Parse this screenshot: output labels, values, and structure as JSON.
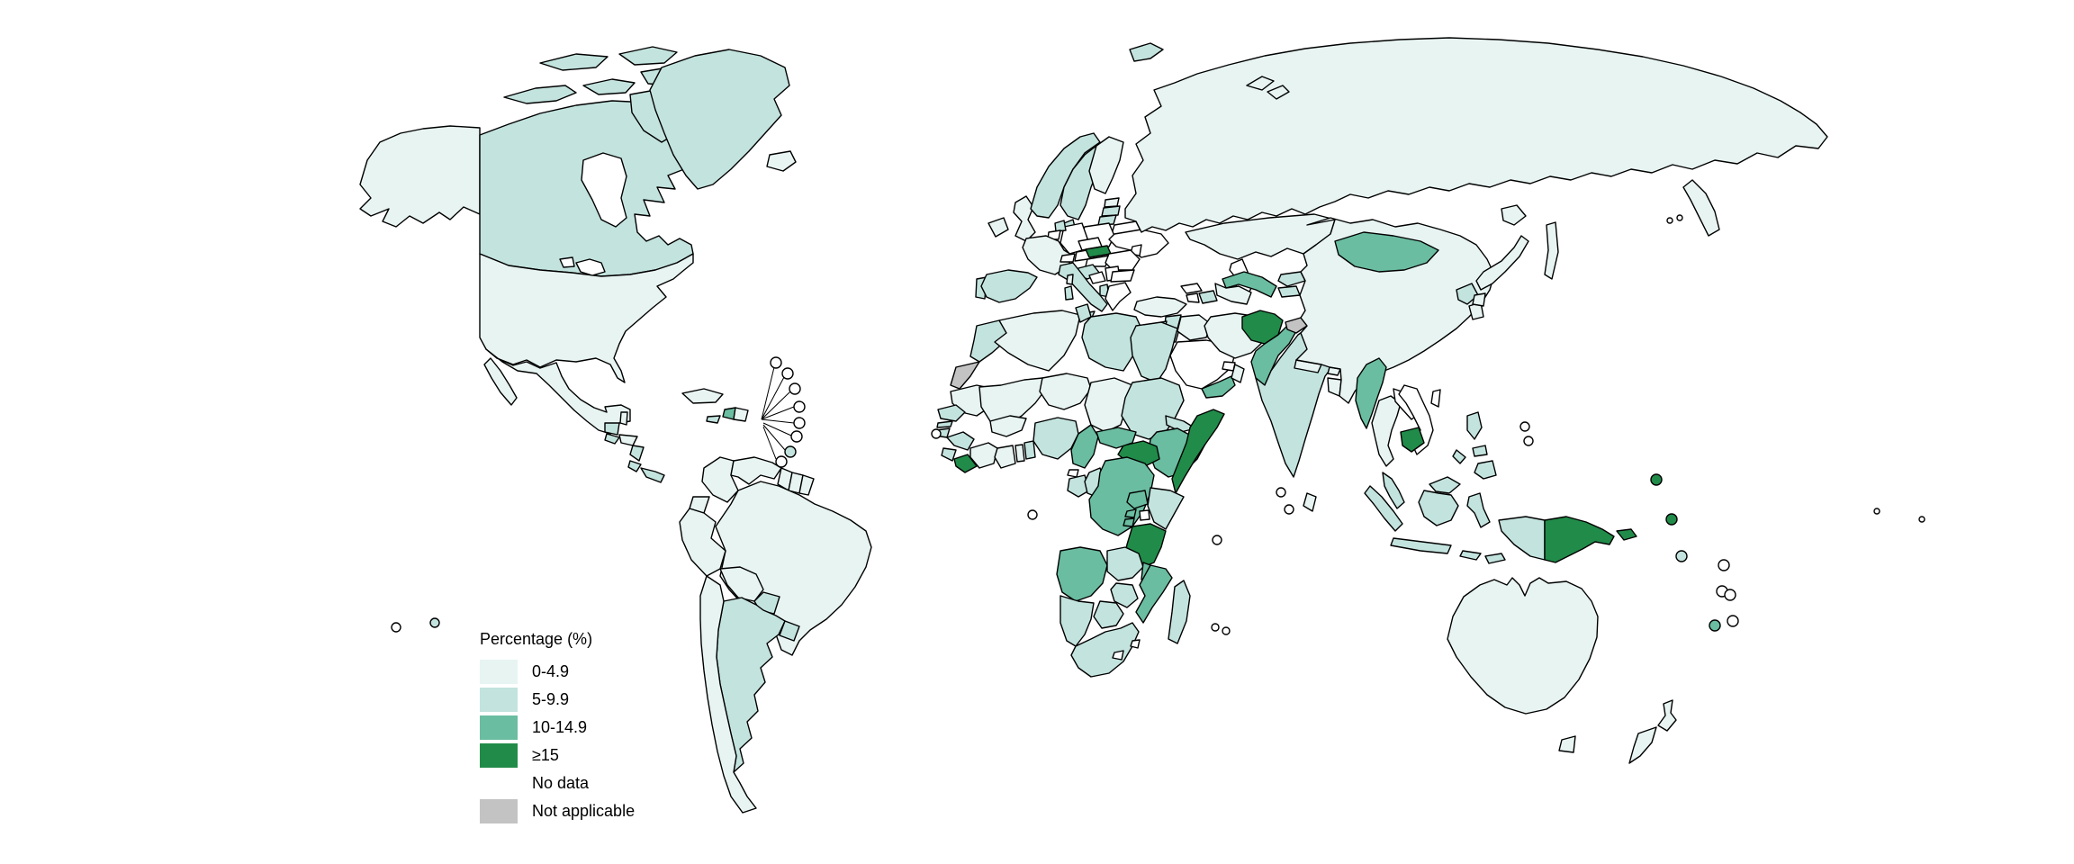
{
  "legend": {
    "title": "Percentage (%)",
    "items": [
      {
        "key": "0-4.9",
        "label": "0-4.9",
        "color": "#e7f4f2"
      },
      {
        "key": "5-9.9",
        "label": "5-9.9",
        "color": "#c3e3de"
      },
      {
        "key": "10-14.9",
        "label": "10-14.9",
        "color": "#6abda0"
      },
      {
        "key": ">=15",
        "label": "≥15",
        "color": "#218b49"
      },
      {
        "key": "no-data",
        "label": "No data",
        "color": "#ffffff"
      },
      {
        "key": "not-applicable",
        "label": "Not applicable",
        "color": "#c3c3c3"
      }
    ]
  },
  "map": {
    "type": "choropleth-world-map",
    "border_color": "#000000",
    "background_color": "#ffffff",
    "countries": [
      {
        "id": "united-states",
        "name": "United States of America",
        "category": "0-4.9"
      },
      {
        "id": "canada",
        "name": "Canada",
        "category": "5-9.9"
      },
      {
        "id": "greenland",
        "name": "Greenland",
        "category": "5-9.9"
      },
      {
        "id": "iceland",
        "name": "Iceland",
        "category": "0-4.9"
      },
      {
        "id": "mexico",
        "name": "Mexico",
        "category": "0-4.9"
      },
      {
        "id": "guatemala",
        "name": "Guatemala",
        "category": "5-9.9"
      },
      {
        "id": "belize",
        "name": "Belize",
        "category": "0-4.9"
      },
      {
        "id": "honduras",
        "name": "Honduras",
        "category": "0-4.9"
      },
      {
        "id": "el-salvador",
        "name": "El Salvador",
        "category": "5-9.9"
      },
      {
        "id": "nicaragua",
        "name": "Nicaragua",
        "category": "5-9.9"
      },
      {
        "id": "costa-rica",
        "name": "Costa Rica",
        "category": "5-9.9"
      },
      {
        "id": "panama",
        "name": "Panama",
        "category": "5-9.9"
      },
      {
        "id": "cuba",
        "name": "Cuba",
        "category": "0-4.9"
      },
      {
        "id": "jamaica",
        "name": "Jamaica",
        "category": "5-9.9"
      },
      {
        "id": "haiti",
        "name": "Haiti",
        "category": "10-14.9"
      },
      {
        "id": "dominican-republic",
        "name": "Dominican Republic",
        "category": "0-4.9"
      },
      {
        "id": "colombia",
        "name": "Colombia",
        "category": "0-4.9"
      },
      {
        "id": "venezuela",
        "name": "Venezuela",
        "category": "0-4.9"
      },
      {
        "id": "guyana",
        "name": "Guyana",
        "category": "0-4.9"
      },
      {
        "id": "suriname",
        "name": "Suriname",
        "category": "0-4.9"
      },
      {
        "id": "french-guiana",
        "name": "French Guiana",
        "category": "0-4.9"
      },
      {
        "id": "ecuador",
        "name": "Ecuador",
        "category": "0-4.9"
      },
      {
        "id": "peru",
        "name": "Peru",
        "category": "0-4.9"
      },
      {
        "id": "brazil",
        "name": "Brazil",
        "category": "0-4.9"
      },
      {
        "id": "bolivia",
        "name": "Bolivia",
        "category": "0-4.9"
      },
      {
        "id": "paraguay",
        "name": "Paraguay",
        "category": "5-9.9"
      },
      {
        "id": "chile",
        "name": "Chile",
        "category": "0-4.9"
      },
      {
        "id": "argentina",
        "name": "Argentina",
        "category": "5-9.9"
      },
      {
        "id": "uruguay",
        "name": "Uruguay",
        "category": "5-9.9"
      },
      {
        "id": "united-kingdom",
        "name": "United Kingdom",
        "category": "0-4.9"
      },
      {
        "id": "ireland",
        "name": "Ireland",
        "category": "0-4.9"
      },
      {
        "id": "france",
        "name": "France",
        "category": "0-4.9"
      },
      {
        "id": "spain",
        "name": "Spain",
        "category": "5-9.9"
      },
      {
        "id": "portugal",
        "name": "Portugal",
        "category": "5-9.9"
      },
      {
        "id": "norway",
        "name": "Norway",
        "category": "5-9.9"
      },
      {
        "id": "sweden",
        "name": "Sweden",
        "category": "5-9.9"
      },
      {
        "id": "finland",
        "name": "Finland",
        "category": "0-4.9"
      },
      {
        "id": "denmark",
        "name": "Denmark",
        "category": "5-9.9"
      },
      {
        "id": "netherlands",
        "name": "Netherlands",
        "category": "5-9.9"
      },
      {
        "id": "belgium",
        "name": "Belgium",
        "category": "no-data"
      },
      {
        "id": "germany",
        "name": "Germany",
        "category": "no-data"
      },
      {
        "id": "poland",
        "name": "Poland",
        "category": "no-data"
      },
      {
        "id": "czechia",
        "name": "Czechia",
        "category": "no-data"
      },
      {
        "id": "austria",
        "name": "Austria",
        "category": "no-data"
      },
      {
        "id": "switzerland",
        "name": "Switzerland",
        "category": "no-data"
      },
      {
        "id": "slovakia",
        "name": "Slovakia",
        "category": ">=15"
      },
      {
        "id": "hungary",
        "name": "Hungary",
        "category": "no-data"
      },
      {
        "id": "romania",
        "name": "Romania",
        "category": "no-data"
      },
      {
        "id": "moldova",
        "name": "Moldova",
        "category": "no-data"
      },
      {
        "id": "bulgaria",
        "name": "Bulgaria",
        "category": "no-data"
      },
      {
        "id": "serbia",
        "name": "Serbia",
        "category": "no-data"
      },
      {
        "id": "bosnia-and-herzegovina",
        "name": "Bosnia and Herzegovina",
        "category": "no-data"
      },
      {
        "id": "croatia",
        "name": "Croatia",
        "category": "5-9.9"
      },
      {
        "id": "albania",
        "name": "Albania",
        "category": "5-9.9"
      },
      {
        "id": "greece",
        "name": "Greece",
        "category": "no-data"
      },
      {
        "id": "italy",
        "name": "Italy",
        "category": "5-9.9"
      },
      {
        "id": "ukraine",
        "name": "Ukraine",
        "category": "no-data"
      },
      {
        "id": "belarus",
        "name": "Belarus",
        "category": "no-data"
      },
      {
        "id": "estonia",
        "name": "Estonia",
        "category": "0-4.9"
      },
      {
        "id": "latvia",
        "name": "Latvia",
        "category": "5-9.9"
      },
      {
        "id": "lithuania",
        "name": "Lithuania",
        "category": "5-9.9"
      },
      {
        "id": "russia",
        "name": "Russian Federation",
        "category": "0-4.9"
      },
      {
        "id": "svalbard",
        "name": "Svalbard",
        "category": "5-9.9"
      },
      {
        "id": "turkey",
        "name": "Türkiye",
        "category": "0-4.9"
      },
      {
        "id": "georgia",
        "name": "Georgia",
        "category": "no-data"
      },
      {
        "id": "armenia",
        "name": "Armenia",
        "category": "no-data"
      },
      {
        "id": "azerbaijan",
        "name": "Azerbaijan",
        "category": "5-9.9"
      },
      {
        "id": "syria",
        "name": "Syrian Arab Republic",
        "category": "5-9.9"
      },
      {
        "id": "lebanon",
        "name": "Lebanon",
        "category": "5-9.9"
      },
      {
        "id": "israel",
        "name": "Israel",
        "category": "5-9.9"
      },
      {
        "id": "jordan",
        "name": "Jordan",
        "category": "5-9.9"
      },
      {
        "id": "iraq",
        "name": "Iraq",
        "category": "0-4.9"
      },
      {
        "id": "saudi-arabia",
        "name": "Saudi Arabia",
        "category": "no-data"
      },
      {
        "id": "yemen",
        "name": "Yemen",
        "category": "10-14.9"
      },
      {
        "id": "oman",
        "name": "Oman",
        "category": "0-4.9"
      },
      {
        "id": "united-arab-emirates",
        "name": "United Arab Emirates",
        "category": "no-data"
      },
      {
        "id": "iran",
        "name": "Iran (Islamic Republic of)",
        "category": "0-4.9"
      },
      {
        "id": "kazakhstan",
        "name": "Kazakhstan",
        "category": "0-4.9"
      },
      {
        "id": "uzbekistan",
        "name": "Uzbekistan",
        "category": "10-14.9"
      },
      {
        "id": "turkmenistan",
        "name": "Turkmenistan",
        "category": "0-4.9"
      },
      {
        "id": "kyrgyzstan",
        "name": "Kyrgyzstan",
        "category": "5-9.9"
      },
      {
        "id": "tajikistan",
        "name": "Tajikistan",
        "category": "5-9.9"
      },
      {
        "id": "afghanistan",
        "name": "Afghanistan",
        "category": ">=15"
      },
      {
        "id": "pakistan",
        "name": "Pakistan",
        "category": "10-14.9"
      },
      {
        "id": "jammu-kashmir",
        "name": "Jammu and Kashmir (disputed territory)",
        "category": "not-applicable"
      },
      {
        "id": "india",
        "name": "India",
        "category": "5-9.9"
      },
      {
        "id": "nepal",
        "name": "Nepal",
        "category": "0-4.9"
      },
      {
        "id": "bhutan",
        "name": "Bhutan",
        "category": "0-4.9"
      },
      {
        "id": "bangladesh",
        "name": "Bangladesh",
        "category": "0-4.9"
      },
      {
        "id": "sri-lanka",
        "name": "Sri Lanka",
        "category": "0-4.9"
      },
      {
        "id": "china",
        "name": "China",
        "category": "0-4.9"
      },
      {
        "id": "mongolia",
        "name": "Mongolia",
        "category": "10-14.9"
      },
      {
        "id": "north-korea",
        "name": "Democratic People's Republic of Korea",
        "category": "5-9.9"
      },
      {
        "id": "south-korea",
        "name": "Republic of Korea",
        "category": "0-4.9"
      },
      {
        "id": "japan",
        "name": "Japan",
        "category": "0-4.9"
      },
      {
        "id": "taiwan",
        "name": "Taiwan",
        "category": "no-data"
      },
      {
        "id": "myanmar",
        "name": "Myanmar",
        "category": "10-14.9"
      },
      {
        "id": "thailand",
        "name": "Thailand",
        "category": "0-4.9"
      },
      {
        "id": "laos",
        "name": "Lao People's Democratic Republic",
        "category": "no-data"
      },
      {
        "id": "vietnam",
        "name": "Viet Nam",
        "category": "no-data"
      },
      {
        "id": "cambodia",
        "name": "Cambodia",
        "category": ">=15"
      },
      {
        "id": "malaysia",
        "name": "Malaysia",
        "category": "5-9.9"
      },
      {
        "id": "indonesia",
        "name": "Indonesia",
        "category": "5-9.9"
      },
      {
        "id": "timor-leste",
        "name": "Timor-Leste",
        "category": "5-9.9"
      },
      {
        "id": "philippines",
        "name": "Philippines",
        "category": "5-9.9"
      },
      {
        "id": "papua-new-guinea",
        "name": "Papua New Guinea",
        "category": ">=15"
      },
      {
        "id": "australia",
        "name": "Australia",
        "category": "0-4.9"
      },
      {
        "id": "new-zealand",
        "name": "New Zealand",
        "category": "0-4.9"
      },
      {
        "id": "morocco",
        "name": "Morocco",
        "category": "5-9.9"
      },
      {
        "id": "western-sahara",
        "name": "Western Sahara",
        "category": "not-applicable"
      },
      {
        "id": "algeria",
        "name": "Algeria",
        "category": "0-4.9"
      },
      {
        "id": "tunisia",
        "name": "Tunisia",
        "category": "5-9.9"
      },
      {
        "id": "libya",
        "name": "Libya",
        "category": "5-9.9"
      },
      {
        "id": "egypt",
        "name": "Egypt",
        "category": "5-9.9"
      },
      {
        "id": "mauritania",
        "name": "Mauritania",
        "category": "0-4.9"
      },
      {
        "id": "mali",
        "name": "Mali",
        "category": "0-4.9"
      },
      {
        "id": "niger",
        "name": "Niger",
        "category": "0-4.9"
      },
      {
        "id": "chad",
        "name": "Chad",
        "category": "0-4.9"
      },
      {
        "id": "sudan",
        "name": "Sudan",
        "category": "5-9.9"
      },
      {
        "id": "eritrea",
        "name": "Eritrea",
        "category": "5-9.9"
      },
      {
        "id": "djibouti",
        "name": "Djibouti",
        "category": "10-14.9"
      },
      {
        "id": "ethiopia",
        "name": "Ethiopia",
        "category": "10-14.9"
      },
      {
        "id": "somalia",
        "name": "Somalia",
        "category": ">=15"
      },
      {
        "id": "south-sudan",
        "name": "South Sudan",
        "category": ">=15"
      },
      {
        "id": "senegal",
        "name": "Senegal",
        "category": "5-9.9"
      },
      {
        "id": "gambia",
        "name": "Gambia",
        "category": "5-9.9"
      },
      {
        "id": "guinea-bissau",
        "name": "Guinea-Bissau",
        "category": "5-9.9"
      },
      {
        "id": "guinea",
        "name": "Guinea",
        "category": "5-9.9"
      },
      {
        "id": "sierra-leone",
        "name": "Sierra Leone",
        "category": "5-9.9"
      },
      {
        "id": "liberia",
        "name": "Liberia",
        "category": ">=15"
      },
      {
        "id": "cote-divoire",
        "name": "Côte d'Ivoire",
        "category": "0-4.9"
      },
      {
        "id": "ghana",
        "name": "Ghana",
        "category": "0-4.9"
      },
      {
        "id": "togo",
        "name": "Togo",
        "category": "0-4.9"
      },
      {
        "id": "benin",
        "name": "Benin",
        "category": "5-9.9"
      },
      {
        "id": "burkina-faso",
        "name": "Burkina Faso",
        "category": "0-4.9"
      },
      {
        "id": "nigeria",
        "name": "Nigeria",
        "category": "5-9.9"
      },
      {
        "id": "cameroon",
        "name": "Cameroon",
        "category": "10-14.9"
      },
      {
        "id": "central-african-republic",
        "name": "Central African Republic",
        "category": "10-14.9"
      },
      {
        "id": "equatorial-guinea",
        "name": "Equatorial Guinea",
        "category": "no-data"
      },
      {
        "id": "gabon",
        "name": "Gabon",
        "category": "5-9.9"
      },
      {
        "id": "congo",
        "name": "Congo",
        "category": "5-9.9"
      },
      {
        "id": "dr-congo",
        "name": "Democratic Republic of the Congo",
        "category": "10-14.9"
      },
      {
        "id": "uganda",
        "name": "Uganda",
        "category": "10-14.9"
      },
      {
        "id": "kenya",
        "name": "Kenya",
        "category": "5-9.9"
      },
      {
        "id": "rwanda",
        "name": "Rwanda",
        "category": "10-14.9"
      },
      {
        "id": "burundi",
        "name": "Burundi",
        "category": "10-14.9"
      },
      {
        "id": "tanzania",
        "name": "United Republic of Tanzania",
        "category": ">=15"
      },
      {
        "id": "angola",
        "name": "Angola",
        "category": "10-14.9"
      },
      {
        "id": "zambia",
        "name": "Zambia",
        "category": "5-9.9"
      },
      {
        "id": "malawi",
        "name": "Malawi",
        "category": "10-14.9"
      },
      {
        "id": "mozambique",
        "name": "Mozambique",
        "category": "10-14.9"
      },
      {
        "id": "zimbabwe",
        "name": "Zimbabwe",
        "category": "5-9.9"
      },
      {
        "id": "botswana",
        "name": "Botswana",
        "category": "5-9.9"
      },
      {
        "id": "namibia",
        "name": "Namibia",
        "category": "5-9.9"
      },
      {
        "id": "south-africa",
        "name": "South Africa",
        "category": "5-9.9"
      },
      {
        "id": "lesotho",
        "name": "Lesotho",
        "category": "no-data"
      },
      {
        "id": "eswatini",
        "name": "Eswatini",
        "category": "no-data"
      },
      {
        "id": "madagascar",
        "name": "Madagascar",
        "category": "5-9.9"
      }
    ],
    "island_markers": [
      {
        "id": "m1",
        "category": "no-data"
      },
      {
        "id": "m2",
        "category": "no-data"
      },
      {
        "id": "m3",
        "category": "no-data"
      },
      {
        "id": "m4",
        "category": "no-data"
      },
      {
        "id": "m5",
        "category": "no-data"
      },
      {
        "id": "m6",
        "category": "no-data"
      },
      {
        "id": "m7",
        "category": "5-9.9"
      },
      {
        "id": "m8",
        "category": "no-data"
      },
      {
        "id": "m9",
        "category": "no-data"
      },
      {
        "id": "m10",
        "category": "no-data"
      },
      {
        "id": "m11",
        "category": "no-data"
      },
      {
        "id": "m12",
        "category": "no-data"
      },
      {
        "id": "m13",
        "category": "no-data"
      },
      {
        "id": "m14",
        "category": "no-data"
      },
      {
        "id": "m15",
        "category": "no-data"
      },
      {
        "id": "m16",
        "category": "no-data"
      },
      {
        "id": "m17",
        "category": "no-data"
      },
      {
        "id": "m18",
        "category": ">=15"
      },
      {
        "id": "m19",
        "category": ">=15"
      },
      {
        "id": "m20",
        "category": "5-9.9"
      },
      {
        "id": "m21",
        "category": "no-data"
      },
      {
        "id": "m22",
        "category": "no-data"
      },
      {
        "id": "m23",
        "category": "no-data"
      },
      {
        "id": "m24",
        "category": "no-data"
      },
      {
        "id": "m25",
        "category": "10-14.9"
      },
      {
        "id": "m26",
        "category": "no-data"
      },
      {
        "id": "m27",
        "category": "5-9.9"
      },
      {
        "id": "m28",
        "category": "no-data"
      },
      {
        "id": "m29",
        "category": "no-data"
      },
      {
        "id": "m30",
        "category": "no-data"
      },
      {
        "id": "m31",
        "category": "no-data"
      }
    ]
  }
}
